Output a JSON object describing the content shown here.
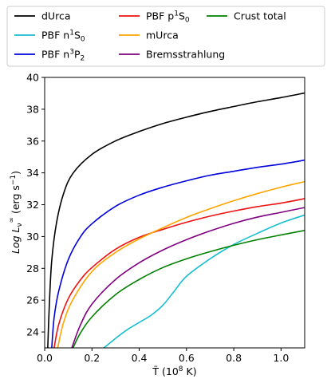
{
  "chart_data": {
    "type": "line",
    "xlabel_base": "T̃ (10",
    "xlabel_exp": "8",
    "xlabel_tail": " K)",
    "ylabel_base": "Log L",
    "ylabel_sub": "ν",
    "ylabel_sup": "∞",
    "ylabel_tail": " (erg s",
    "ylabel_tail_sup": "−1",
    "ylabel_close": ")",
    "xlim": [
      0.0,
      1.1
    ],
    "ylim": [
      23,
      40
    ],
    "xticks": [
      0.0,
      0.2,
      0.4,
      0.6,
      0.8,
      1.0
    ],
    "xtick_labels": [
      "0.0",
      "0.2",
      "0.4",
      "0.6",
      "0.8",
      "1.0"
    ],
    "yticks": [
      24,
      26,
      28,
      30,
      32,
      34,
      36,
      38,
      40
    ],
    "ytick_labels": [
      "24",
      "26",
      "28",
      "30",
      "32",
      "34",
      "36",
      "38",
      "40"
    ],
    "grid": false,
    "legend_position": "top",
    "series": [
      {
        "label_base": "dUrca",
        "label_sup": "",
        "label_sub": "",
        "color": "#000000",
        "points": [
          [
            0.013,
            23
          ],
          [
            0.02,
            25.8
          ],
          [
            0.03,
            28.5
          ],
          [
            0.05,
            30.85
          ],
          [
            0.08,
            32.7
          ],
          [
            0.12,
            33.98
          ],
          [
            0.2,
            35.16
          ],
          [
            0.3,
            36.01
          ],
          [
            0.4,
            36.6
          ],
          [
            0.5,
            37.1
          ],
          [
            0.6,
            37.5
          ],
          [
            0.7,
            37.86
          ],
          [
            0.8,
            38.17
          ],
          [
            0.9,
            38.47
          ],
          [
            1.0,
            38.73
          ],
          [
            1.1,
            39.02
          ]
        ]
      },
      {
        "label_base": "PBF n",
        "label_sup": "1",
        "label_sub": "0",
        "label_mid": "S",
        "color": "#17becf",
        "points": [
          [
            0.25,
            23
          ],
          [
            0.28,
            23.35
          ],
          [
            0.3,
            23.6
          ],
          [
            0.35,
            24.15
          ],
          [
            0.4,
            24.6
          ],
          [
            0.45,
            25.05
          ],
          [
            0.5,
            25.68
          ],
          [
            0.55,
            26.6
          ],
          [
            0.6,
            27.5
          ],
          [
            0.7,
            28.6
          ],
          [
            0.8,
            29.5
          ],
          [
            0.9,
            30.2
          ],
          [
            1.0,
            30.85
          ],
          [
            1.1,
            31.35
          ]
        ]
      },
      {
        "label_base": "PBF n",
        "label_sup": "3",
        "label_sub": "2",
        "label_mid": "P",
        "color": "#0000dd",
        "points": [
          [
            0.03,
            23
          ],
          [
            0.04,
            24.9
          ],
          [
            0.06,
            26.6
          ],
          [
            0.1,
            28.55
          ],
          [
            0.15,
            29.95
          ],
          [
            0.2,
            30.8
          ],
          [
            0.3,
            31.9
          ],
          [
            0.4,
            32.6
          ],
          [
            0.5,
            33.1
          ],
          [
            0.6,
            33.5
          ],
          [
            0.7,
            33.85
          ],
          [
            0.8,
            34.1
          ],
          [
            0.9,
            34.35
          ],
          [
            1.0,
            34.55
          ],
          [
            1.1,
            34.8
          ]
        ]
      },
      {
        "label_base": "PBF p",
        "label_sup": "1",
        "label_sub": "0",
        "label_mid": "S",
        "color": "#ee1111",
        "points": [
          [
            0.04,
            23
          ],
          [
            0.06,
            24.5
          ],
          [
            0.1,
            26.1
          ],
          [
            0.15,
            27.25
          ],
          [
            0.2,
            28.05
          ],
          [
            0.3,
            29.2
          ],
          [
            0.4,
            29.95
          ],
          [
            0.5,
            30.45
          ],
          [
            0.6,
            30.9
          ],
          [
            0.7,
            31.28
          ],
          [
            0.8,
            31.6
          ],
          [
            0.9,
            31.88
          ],
          [
            1.0,
            32.1
          ],
          [
            1.1,
            32.38
          ]
        ]
      },
      {
        "label_base": "mUrca",
        "label_sup": "",
        "label_sub": "",
        "color": "#ffa500",
        "points": [
          [
            0.055,
            23
          ],
          [
            0.08,
            24.6
          ],
          [
            0.12,
            26.05
          ],
          [
            0.2,
            27.8
          ],
          [
            0.3,
            29.0
          ],
          [
            0.4,
            29.85
          ],
          [
            0.5,
            30.55
          ],
          [
            0.6,
            31.2
          ],
          [
            0.7,
            31.75
          ],
          [
            0.8,
            32.25
          ],
          [
            0.9,
            32.7
          ],
          [
            1.0,
            33.1
          ],
          [
            1.1,
            33.45
          ]
        ]
      },
      {
        "label_base": "Bremsstrahlung",
        "label_sup": "",
        "label_sub": "",
        "color": "#800080",
        "points": [
          [
            0.115,
            23
          ],
          [
            0.15,
            24.4
          ],
          [
            0.2,
            25.75
          ],
          [
            0.3,
            27.3
          ],
          [
            0.4,
            28.35
          ],
          [
            0.5,
            29.15
          ],
          [
            0.6,
            29.8
          ],
          [
            0.7,
            30.35
          ],
          [
            0.8,
            30.83
          ],
          [
            0.9,
            31.22
          ],
          [
            1.0,
            31.52
          ],
          [
            1.1,
            31.82
          ]
        ]
      },
      {
        "label_base": "Crust total",
        "label_sup": "",
        "label_sub": "",
        "color": "#008000",
        "points": [
          [
            0.12,
            23
          ],
          [
            0.15,
            23.9
          ],
          [
            0.2,
            24.95
          ],
          [
            0.3,
            26.35
          ],
          [
            0.4,
            27.3
          ],
          [
            0.5,
            28.05
          ],
          [
            0.6,
            28.6
          ],
          [
            0.7,
            29.05
          ],
          [
            0.8,
            29.45
          ],
          [
            0.9,
            29.8
          ],
          [
            1.0,
            30.1
          ],
          [
            1.1,
            30.38
          ]
        ]
      }
    ]
  }
}
